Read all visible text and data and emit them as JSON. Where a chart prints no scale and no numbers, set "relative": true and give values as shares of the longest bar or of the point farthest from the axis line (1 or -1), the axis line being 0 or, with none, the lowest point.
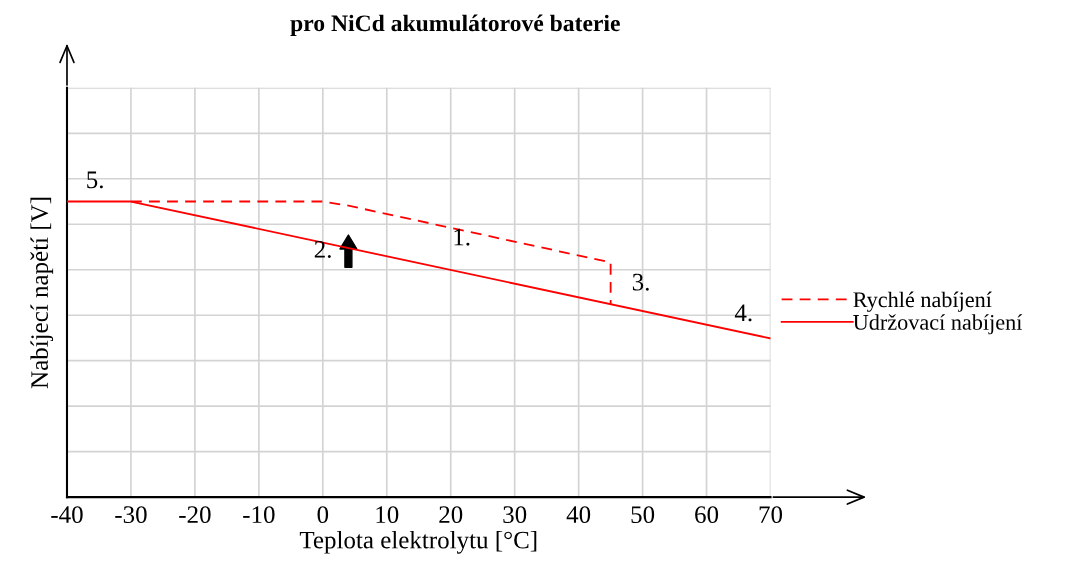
{
  "chart_data": {
    "type": "line",
    "title": "pro NiCd akumulátorové baterie",
    "xlabel": "Teplota elektrolytu [°C]",
    "ylabel": "Nabíjecí napětí [V]",
    "relative": true,
    "xlim": [
      -40,
      70
    ],
    "xticks": [
      -40,
      -30,
      -20,
      -10,
      0,
      10,
      20,
      30,
      40,
      50,
      60,
      70
    ],
    "series": [
      {
        "name": "Rychlé nabíjení",
        "color": "#ff0000",
        "line_style": "dashed",
        "x": [
          -30,
          0,
          4,
          45,
          45
        ],
        "values": [
          1.0,
          1.0,
          0.986,
          0.794,
          0.652
        ]
      },
      {
        "name": "Udržovací nabíjení",
        "color": "#ff0000",
        "line_style": "solid",
        "x": [
          -40,
          -30,
          70
        ],
        "values": [
          1.0,
          1.0,
          0.537
        ]
      }
    ],
    "annotations": [
      "1.",
      "2.",
      "3.",
      "4.",
      "5."
    ],
    "grid": true,
    "legend": "right",
    "marker": "none"
  }
}
